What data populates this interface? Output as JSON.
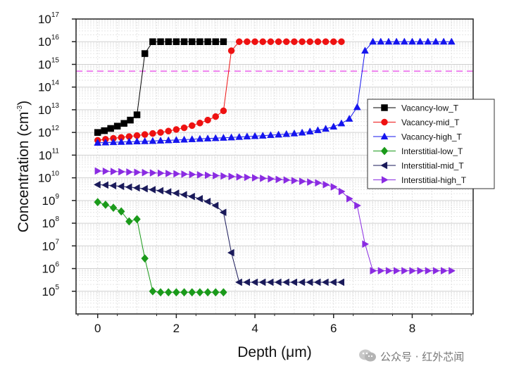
{
  "chart_data": {
    "type": "scatter",
    "xlabel": "Depth (μm)",
    "ylabel_parts": [
      "Concentration (cm",
      "-3",
      ")"
    ],
    "xlim": [
      -0.55,
      9.55
    ],
    "ylim_log10": [
      4,
      17
    ],
    "xticks": [
      0,
      2,
      4,
      6,
      8
    ],
    "ytick_exponents": [
      5,
      6,
      7,
      8,
      9,
      10,
      11,
      12,
      13,
      14,
      15,
      16,
      17
    ],
    "ytick_base": "10",
    "y_scale": "log",
    "grid": true,
    "reference_line": {
      "y": 500000000000000.0,
      "color": "#ee82ee",
      "style": "dashed"
    },
    "legend_position": "right",
    "series": [
      {
        "name": "Vacancy-low_T",
        "color": "#000000",
        "marker": "square",
        "x": [
          0,
          0.17,
          0.33,
          0.5,
          0.67,
          0.83,
          1.0,
          1.2,
          1.4,
          1.6,
          1.8,
          2.0,
          2.2,
          2.4,
          2.6,
          2.8,
          3.0,
          3.2
        ],
        "y": [
          1000000000000.0,
          1200000000000.0,
          1500000000000.0,
          1900000000000.0,
          2500000000000.0,
          3500000000000.0,
          6000000000000.0,
          3000000000000000.0,
          1e+16,
          1e+16,
          1e+16,
          1e+16,
          1e+16,
          1e+16,
          1e+16,
          1e+16,
          1e+16,
          1e+16
        ]
      },
      {
        "name": "Vacancy-mid_T",
        "color": "#ee1111",
        "marker": "circle",
        "x": [
          0,
          0.2,
          0.4,
          0.6,
          0.8,
          1.0,
          1.2,
          1.4,
          1.6,
          1.8,
          2.0,
          2.2,
          2.4,
          2.6,
          2.8,
          3.0,
          3.2,
          3.4,
          3.6,
          3.8,
          4.0,
          4.2,
          4.4,
          4.6,
          4.8,
          5.0,
          5.2,
          5.4,
          5.6,
          5.8,
          6.0,
          6.2
        ],
        "y": [
          450000000000.0,
          500000000000.0,
          550000000000.0,
          600000000000.0,
          660000000000.0,
          730000000000.0,
          810000000000.0,
          900000000000.0,
          1000000000000.0,
          1150000000000.0,
          1350000000000.0,
          1600000000000.0,
          2000000000000.0,
          2600000000000.0,
          3500000000000.0,
          5000000000000.0,
          9000000000000.0,
          4000000000000000.0,
          1e+16,
          1e+16,
          1e+16,
          1e+16,
          1e+16,
          1e+16,
          1e+16,
          1e+16,
          1e+16,
          1e+16,
          1e+16,
          1e+16,
          1e+16,
          1e+16
        ]
      },
      {
        "name": "Vacancy-high_T",
        "color": "#1515ee",
        "marker": "triangle-up",
        "x": [
          0,
          0.2,
          0.4,
          0.6,
          0.8,
          1.0,
          1.2,
          1.4,
          1.6,
          1.8,
          2.0,
          2.2,
          2.4,
          2.6,
          2.8,
          3.0,
          3.2,
          3.4,
          3.6,
          3.8,
          4.0,
          4.2,
          4.4,
          4.6,
          4.8,
          5.0,
          5.2,
          5.4,
          5.6,
          5.8,
          6.0,
          6.2,
          6.4,
          6.6,
          6.8,
          7.0,
          7.2,
          7.4,
          7.6,
          7.8,
          8.0,
          8.2,
          8.4,
          8.6,
          8.8,
          9.0
        ],
        "y": [
          350000000000.0,
          360000000000.0,
          370000000000.0,
          380000000000.0,
          390000000000.0,
          400000000000.0,
          410000000000.0,
          420000000000.0,
          435000000000.0,
          450000000000.0,
          465000000000.0,
          480000000000.0,
          500000000000.0,
          520000000000.0,
          540000000000.0,
          560000000000.0,
          580000000000.0,
          600000000000.0,
          630000000000.0,
          660000000000.0,
          690000000000.0,
          720000000000.0,
          760000000000.0,
          800000000000.0,
          850000000000.0,
          900000000000.0,
          980000000000.0,
          1100000000000.0,
          1250000000000.0,
          1450000000000.0,
          1800000000000.0,
          2500000000000.0,
          4000000000000.0,
          13000000000000.0,
          4000000000000000.0,
          1e+16,
          1e+16,
          1e+16,
          1e+16,
          1e+16,
          1e+16,
          1e+16,
          1e+16,
          1e+16,
          1e+16,
          1e+16
        ]
      },
      {
        "name": "Interstitial-low_T",
        "color": "#1a9a1a",
        "marker": "diamond",
        "x": [
          0,
          0.2,
          0.4,
          0.6,
          0.8,
          1.0,
          1.2,
          1.4,
          1.6,
          1.8,
          2.0,
          2.2,
          2.4,
          2.6,
          2.8,
          3.0,
          3.2
        ],
        "y": [
          850000000.0,
          650000000.0,
          480000000.0,
          330000000.0,
          120000000.0,
          150000000.0,
          2800000.0,
          100000.0,
          90000.0,
          90000.0,
          90000.0,
          90000.0,
          90000.0,
          90000.0,
          90000.0,
          90000.0,
          90000.0
        ]
      },
      {
        "name": "Interstitial-mid_T",
        "color": "#1a1a5a",
        "marker": "triangle-left",
        "x": [
          0,
          0.2,
          0.4,
          0.6,
          0.8,
          1.0,
          1.2,
          1.4,
          1.6,
          1.8,
          2.0,
          2.2,
          2.4,
          2.6,
          2.8,
          3.0,
          3.2,
          3.4,
          3.6,
          3.8,
          4.0,
          4.2,
          4.4,
          4.6,
          4.8,
          5.0,
          5.2,
          5.4,
          5.6,
          5.8,
          6.0,
          6.2
        ],
        "y": [
          5000000000.0,
          4800000000.0,
          4500000000.0,
          4200000000.0,
          3900000000.0,
          3600000000.0,
          3300000000.0,
          3000000000.0,
          2700000000.0,
          2400000000.0,
          2100000000.0,
          1800000000.0,
          1500000000.0,
          1200000000.0,
          900000000.0,
          600000000.0,
          300000000.0,
          5000000.0,
          250000.0,
          250000.0,
          250000.0,
          250000.0,
          250000.0,
          250000.0,
          250000.0,
          250000.0,
          250000.0,
          250000.0,
          250000.0,
          250000.0,
          250000.0,
          250000.0
        ]
      },
      {
        "name": "Interstitial-high_T",
        "color": "#8a2be2",
        "marker": "triangle-right",
        "x": [
          0,
          0.2,
          0.4,
          0.6,
          0.8,
          1.0,
          1.2,
          1.4,
          1.6,
          1.8,
          2.0,
          2.2,
          2.4,
          2.6,
          2.8,
          3.0,
          3.2,
          3.4,
          3.6,
          3.8,
          4.0,
          4.2,
          4.4,
          4.6,
          4.8,
          5.0,
          5.2,
          5.4,
          5.6,
          5.8,
          6.0,
          6.2,
          6.4,
          6.6,
          6.8,
          7.0,
          7.2,
          7.4,
          7.6,
          7.8,
          8.0,
          8.2,
          8.4,
          8.6,
          8.8,
          9.0
        ],
        "y": [
          20000000000.0,
          19500000000.0,
          19000000000.0,
          18500000000.0,
          18000000000.0,
          17500000000.0,
          17000000000.0,
          16500000000.0,
          16000000000.0,
          15500000000.0,
          15000000000.0,
          14500000000.0,
          14000000000.0,
          13500000000.0,
          13000000000.0,
          12500000000.0,
          12000000000.0,
          11500000000.0,
          11000000000.0,
          10500000000.0,
          10000000000.0,
          9500000000.0,
          9000000000.0,
          8500000000.0,
          8000000000.0,
          7500000000.0,
          7000000000.0,
          6500000000.0,
          6000000000.0,
          5000000000.0,
          4000000000.0,
          2500000000.0,
          1200000000.0,
          600000000.0,
          12000000.0,
          800000.0,
          800000.0,
          800000.0,
          800000.0,
          800000.0,
          800000.0,
          800000.0,
          800000.0,
          800000.0,
          800000.0,
          800000.0
        ]
      }
    ]
  },
  "watermark": {
    "text": "公众号 · 红外芯闻",
    "icon": "wechat-icon"
  }
}
